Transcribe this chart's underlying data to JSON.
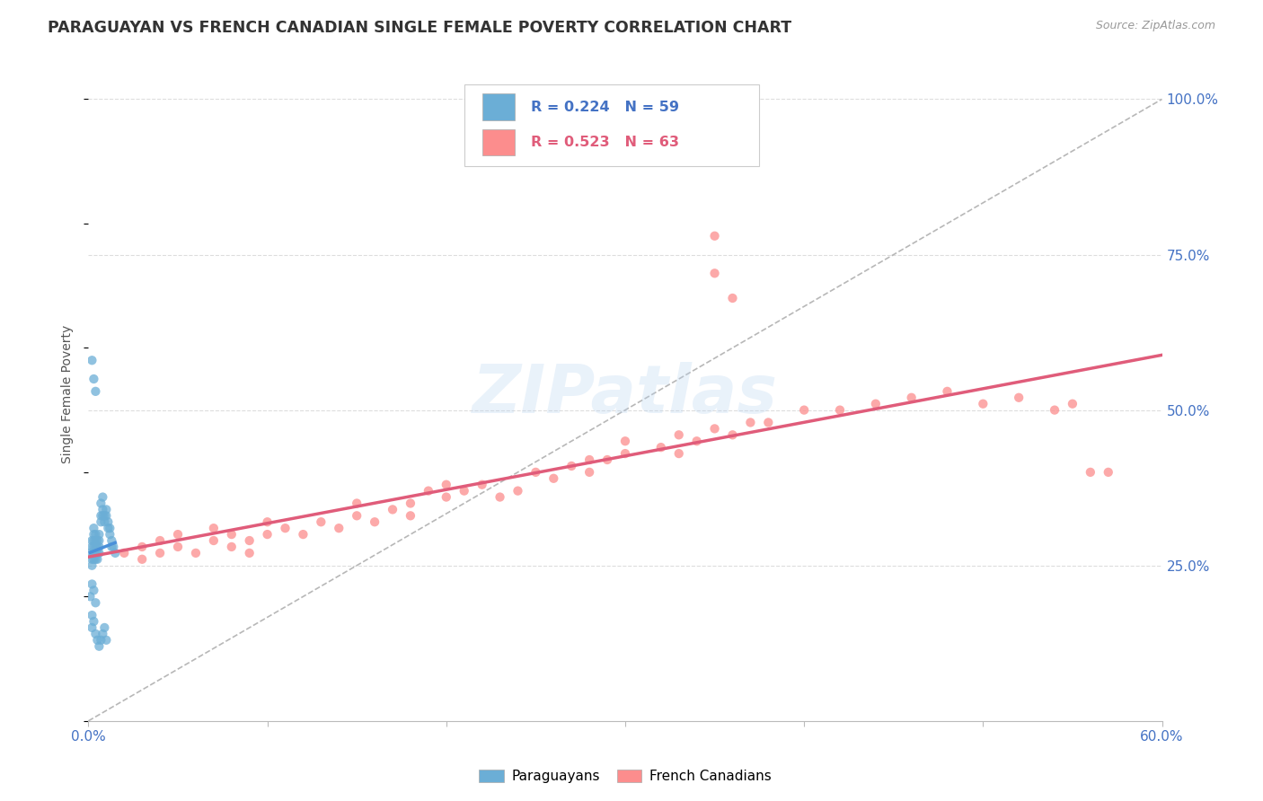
{
  "title": "PARAGUAYAN VS FRENCH CANADIAN SINGLE FEMALE POVERTY CORRELATION CHART",
  "source": "Source: ZipAtlas.com",
  "ylabel": "Single Female Poverty",
  "ytick_values": [
    0.25,
    0.5,
    0.75,
    1.0
  ],
  "ytick_labels": [
    "25.0%",
    "50.0%",
    "75.0%",
    "100.0%"
  ],
  "xlim": [
    0.0,
    0.6
  ],
  "ylim": [
    0.0,
    1.05
  ],
  "xtick_positions": [
    0.0,
    0.1,
    0.2,
    0.3,
    0.4,
    0.5,
    0.6
  ],
  "R_paraguayan": 0.224,
  "N_paraguayan": 59,
  "R_french": 0.523,
  "N_french": 63,
  "color_paraguayan": "#6baed6",
  "color_french": "#fc8d8d",
  "trendline_paraguayan_color": "#4a90d9",
  "trendline_french_color": "#e05c7a",
  "diagonal_color": "#b0b0b0",
  "background_color": "#ffffff",
  "watermark": "ZIPatlas",
  "title_color": "#333333",
  "source_color": "#999999",
  "axis_label_color": "#4472c4",
  "ylabel_color": "#555555",
  "grid_color": "#dddddd",
  "legend_text_paraguayan_color": "#4472c4",
  "legend_text_french_color": "#e05c7a",
  "par_x": [
    0.001,
    0.002,
    0.002,
    0.002,
    0.002,
    0.003,
    0.003,
    0.003,
    0.003,
    0.003,
    0.003,
    0.004,
    0.004,
    0.004,
    0.004,
    0.004,
    0.005,
    0.005,
    0.005,
    0.005,
    0.006,
    0.006,
    0.006,
    0.006,
    0.007,
    0.007,
    0.007,
    0.008,
    0.008,
    0.008,
    0.009,
    0.009,
    0.01,
    0.01,
    0.011,
    0.011,
    0.012,
    0.012,
    0.013,
    0.013,
    0.014,
    0.015,
    0.002,
    0.003,
    0.004,
    0.002,
    0.001,
    0.003,
    0.004,
    0.002,
    0.002,
    0.003,
    0.004,
    0.005,
    0.006,
    0.007,
    0.008,
    0.009,
    0.01
  ],
  "par_y": [
    0.27,
    0.28,
    0.26,
    0.29,
    0.25,
    0.27,
    0.26,
    0.28,
    0.3,
    0.29,
    0.31,
    0.28,
    0.27,
    0.29,
    0.26,
    0.3,
    0.27,
    0.29,
    0.28,
    0.26,
    0.3,
    0.29,
    0.28,
    0.27,
    0.32,
    0.33,
    0.35,
    0.34,
    0.33,
    0.36,
    0.32,
    0.33,
    0.34,
    0.33,
    0.31,
    0.32,
    0.31,
    0.3,
    0.29,
    0.28,
    0.28,
    0.27,
    0.58,
    0.55,
    0.53,
    0.22,
    0.2,
    0.21,
    0.19,
    0.17,
    0.15,
    0.16,
    0.14,
    0.13,
    0.12,
    0.13,
    0.14,
    0.15,
    0.13
  ],
  "fr_x": [
    0.02,
    0.03,
    0.03,
    0.04,
    0.04,
    0.05,
    0.05,
    0.06,
    0.07,
    0.07,
    0.08,
    0.08,
    0.09,
    0.09,
    0.1,
    0.1,
    0.11,
    0.12,
    0.13,
    0.14,
    0.15,
    0.15,
    0.16,
    0.17,
    0.18,
    0.18,
    0.19,
    0.2,
    0.2,
    0.21,
    0.22,
    0.23,
    0.24,
    0.25,
    0.26,
    0.27,
    0.28,
    0.28,
    0.29,
    0.3,
    0.3,
    0.32,
    0.33,
    0.33,
    0.34,
    0.35,
    0.36,
    0.37,
    0.38,
    0.4,
    0.42,
    0.44,
    0.46,
    0.48,
    0.5,
    0.52,
    0.54,
    0.55,
    0.56,
    0.57,
    0.35,
    0.35,
    0.36
  ],
  "fr_y": [
    0.27,
    0.28,
    0.26,
    0.29,
    0.27,
    0.3,
    0.28,
    0.27,
    0.29,
    0.31,
    0.28,
    0.3,
    0.27,
    0.29,
    0.3,
    0.32,
    0.31,
    0.3,
    0.32,
    0.31,
    0.33,
    0.35,
    0.32,
    0.34,
    0.33,
    0.35,
    0.37,
    0.36,
    0.38,
    0.37,
    0.38,
    0.36,
    0.37,
    0.4,
    0.39,
    0.41,
    0.4,
    0.42,
    0.42,
    0.43,
    0.45,
    0.44,
    0.43,
    0.46,
    0.45,
    0.47,
    0.46,
    0.48,
    0.48,
    0.5,
    0.5,
    0.51,
    0.52,
    0.53,
    0.51,
    0.52,
    0.5,
    0.51,
    0.4,
    0.4,
    0.72,
    0.78,
    0.68
  ]
}
